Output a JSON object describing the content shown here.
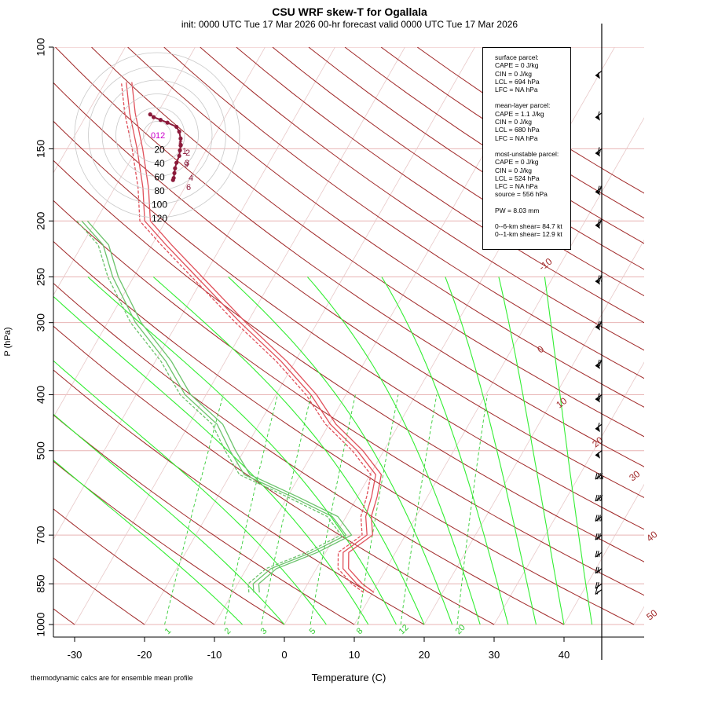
{
  "title": "CSU WRF skew-T for Ogallala",
  "subtitle": "init: 0000 UTC Tue 17 Mar 2026     00-hr forecast valid 0000 UTC Tue 17 Mar 2026",
  "footnote": "thermodynamic calcs are for ensemble mean profile",
  "parcel_info": {
    "surface": [
      "surface parcel:",
      "CAPE = 0 J/kg",
      "CIN = 0 J/kg",
      "LCL = 694 hPa",
      "LFC = NA hPa"
    ],
    "mean_layer": [
      "mean-layer parcel:",
      "CAPE = 1.1 J/kg",
      "CIN = 0 J/kg",
      "LCL = 680 hPa",
      "LFC = NA hPa"
    ],
    "most_unstable": [
      "most-unstable parcel:",
      "CAPE = 0 J/kg",
      "CIN = 0 J/kg",
      "LCL = 524 hPa",
      "LFC = NA hPa",
      "source = 556 hPa"
    ],
    "pw": "PW =  8.03 mm",
    "shear": [
      "0--6-km shear= 84.7 kt",
      "0--1-km shear= 12.9 kt"
    ]
  },
  "colors": {
    "temperature": "#e0505a",
    "dewpoint": "#6cc36c",
    "isotherm_dry_adiabat": "#a02828",
    "moist_adiabat": "#33ee33",
    "mixing_ratio": "#33cc33",
    "isobar": "#e8b4b4",
    "hodograph_trace": "#8b1a3a",
    "hodograph_label": "#cc00cc"
  },
  "chart_data": {
    "type": "skew-t",
    "xlabel": "Temperature (C)",
    "ylabel": "P (hPa)",
    "x_ticks": [
      -30,
      -20,
      -10,
      0,
      10,
      20,
      30,
      40
    ],
    "y_ticks": [
      100,
      150,
      200,
      250,
      300,
      400,
      500,
      700,
      850,
      1000
    ],
    "ylim": [
      1000,
      100
    ],
    "xlim": [
      -33,
      52
    ],
    "dry_adiabat_labels": [
      "-10",
      "0",
      "10",
      "20",
      "30",
      "40",
      "50"
    ],
    "mixing_ratio_labels": [
      "1",
      "2",
      "3",
      "5",
      "8",
      "12",
      "20"
    ],
    "temperature_profile": [
      {
        "p": 880,
        "t": 9.4
      },
      {
        "p": 850,
        "t": 7.0
      },
      {
        "p": 800,
        "t": 3.8
      },
      {
        "p": 750,
        "t": 2.5
      },
      {
        "p": 700,
        "t": 4.5
      },
      {
        "p": 650,
        "t": 2.8
      },
      {
        "p": 600,
        "t": 2.0
      },
      {
        "p": 550,
        "t": 0.8
      },
      {
        "p": 500,
        "t": -3.8
      },
      {
        "p": 450,
        "t": -9.8
      },
      {
        "p": 400,
        "t": -15.0
      },
      {
        "p": 350,
        "t": -22.0
      },
      {
        "p": 300,
        "t": -31.0
      },
      {
        "p": 250,
        "t": -41.0
      },
      {
        "p": 220,
        "t": -48.0
      },
      {
        "p": 200,
        "t": -53.0
      },
      {
        "p": 175,
        "t": -56.0
      },
      {
        "p": 150,
        "t": -60.0
      },
      {
        "p": 130,
        "t": -64.0
      },
      {
        "p": 115,
        "t": -67.0
      }
    ],
    "dewpoint_profile": [
      {
        "p": 880,
        "t": -7.0
      },
      {
        "p": 850,
        "t": -7.8
      },
      {
        "p": 800,
        "t": -6.5
      },
      {
        "p": 750,
        "t": -2.0
      },
      {
        "p": 700,
        "t": 1.5
      },
      {
        "p": 650,
        "t": -2.0
      },
      {
        "p": 600,
        "t": -9.5
      },
      {
        "p": 550,
        "t": -18.0
      },
      {
        "p": 500,
        "t": -22.0
      },
      {
        "p": 450,
        "t": -26.0
      },
      {
        "p": 400,
        "t": -33.0
      },
      {
        "p": 350,
        "t": -38.5
      },
      {
        "p": 300,
        "t": -46.0
      },
      {
        "p": 250,
        "t": -53.0
      },
      {
        "p": 220,
        "t": -57.0
      },
      {
        "p": 200,
        "t": -62.0
      }
    ],
    "hodograph_rings": [
      "20",
      "40",
      "60",
      "80",
      "100",
      "120"
    ],
    "hodograph_labels": [
      "0",
      "1",
      "2",
      "3",
      "4",
      "5",
      "6",
      "9",
      "12"
    ],
    "wind_barbs": [
      {
        "p": 870,
        "speed_kt": 15
      },
      {
        "p": 850,
        "speed_kt": 20
      },
      {
        "p": 800,
        "speed_kt": 25
      },
      {
        "p": 750,
        "speed_kt": 25
      },
      {
        "p": 700,
        "speed_kt": 30
      },
      {
        "p": 650,
        "speed_kt": 35
      },
      {
        "p": 600,
        "speed_kt": 40
      },
      {
        "p": 550,
        "speed_kt": 45
      },
      {
        "p": 500,
        "speed_kt": 55
      },
      {
        "p": 450,
        "speed_kt": 60
      },
      {
        "p": 400,
        "speed_kt": 65
      },
      {
        "p": 350,
        "speed_kt": 70
      },
      {
        "p": 300,
        "speed_kt": 75
      },
      {
        "p": 250,
        "speed_kt": 75
      },
      {
        "p": 200,
        "speed_kt": 70
      },
      {
        "p": 175,
        "speed_kt": 70
      },
      {
        "p": 150,
        "speed_kt": 65
      },
      {
        "p": 130,
        "speed_kt": 60
      },
      {
        "p": 110,
        "speed_kt": 55
      }
    ]
  }
}
